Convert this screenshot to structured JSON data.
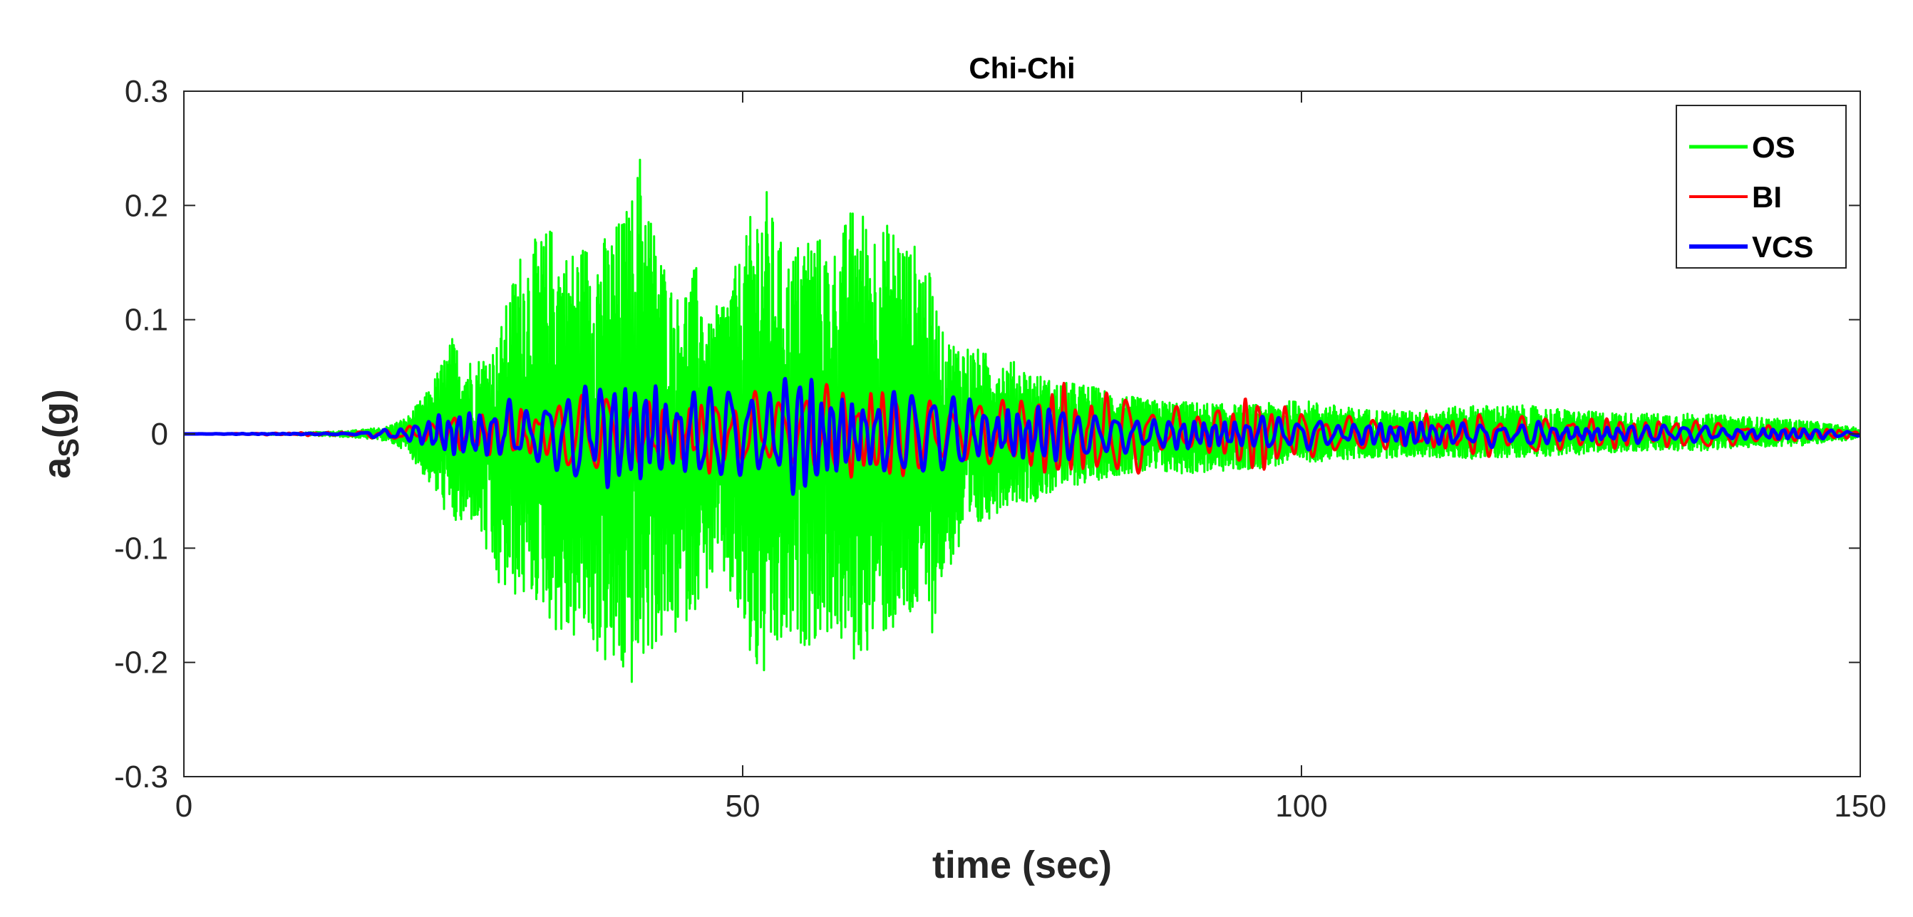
{
  "chart_data": {
    "type": "line",
    "title": "Chi-Chi",
    "xlabel": "time (sec)",
    "ylabel_main": "a",
    "ylabel_sub": "S",
    "ylabel_unit": "(g)",
    "xlim": [
      0,
      150
    ],
    "ylim": [
      -0.3,
      0.3
    ],
    "x_ticks": [
      0,
      50,
      100,
      150
    ],
    "x_tick_labels": [
      "0",
      "50",
      "100",
      "150"
    ],
    "y_ticks": [
      -0.3,
      -0.2,
      -0.1,
      0,
      0.1,
      0.2,
      0.3
    ],
    "y_tick_labels": [
      "-0.3",
      "-0.2",
      "-0.1",
      "0",
      "0.1",
      "0.2",
      "0.3"
    ],
    "grid": false,
    "legend_position": "top-right",
    "series": [
      {
        "name": "OS",
        "color": "#00ff00",
        "envelope_t": [
          0,
          10,
          15,
          18,
          20,
          22,
          24,
          25,
          26,
          28,
          30,
          32,
          33,
          34,
          36,
          38,
          40,
          41,
          42,
          44,
          46,
          47,
          48,
          50,
          51,
          52,
          53,
          54,
          56,
          58,
          60,
          62,
          64,
          65,
          66,
          67,
          68,
          70,
          72,
          74,
          76,
          78,
          80,
          82,
          84,
          86,
          90,
          95,
          100,
          105,
          110,
          115,
          120,
          125,
          130,
          135,
          140,
          145,
          150
        ],
        "envelope_upper": [
          0,
          0.001,
          0.003,
          0.006,
          0.015,
          0.04,
          0.085,
          0.07,
          0.065,
          0.08,
          0.16,
          0.175,
          0.185,
          0.16,
          0.17,
          0.175,
          0.205,
          0.26,
          0.185,
          0.12,
          0.15,
          0.095,
          0.12,
          0.16,
          0.205,
          0.22,
          0.18,
          0.155,
          0.185,
          0.16,
          0.205,
          0.185,
          0.185,
          0.165,
          0.17,
          0.13,
          0.085,
          0.08,
          0.07,
          0.065,
          0.055,
          0.045,
          0.045,
          0.04,
          0.035,
          0.03,
          0.028,
          0.025,
          0.03,
          0.022,
          0.02,
          0.025,
          0.025,
          0.02,
          0.018,
          0.018,
          0.015,
          0.012,
          0.005
        ],
        "envelope_lower": [
          0,
          -0.001,
          -0.003,
          -0.006,
          -0.015,
          -0.045,
          -0.08,
          -0.085,
          -0.075,
          -0.14,
          -0.145,
          -0.15,
          -0.17,
          -0.185,
          -0.18,
          -0.21,
          -0.225,
          -0.205,
          -0.19,
          -0.18,
          -0.15,
          -0.135,
          -0.12,
          -0.18,
          -0.215,
          -0.22,
          -0.2,
          -0.19,
          -0.185,
          -0.175,
          -0.205,
          -0.18,
          -0.175,
          -0.17,
          -0.155,
          -0.175,
          -0.125,
          -0.1,
          -0.075,
          -0.06,
          -0.06,
          -0.05,
          -0.045,
          -0.04,
          -0.035,
          -0.035,
          -0.035,
          -0.032,
          -0.025,
          -0.022,
          -0.02,
          -0.022,
          -0.02,
          -0.018,
          -0.015,
          -0.015,
          -0.012,
          -0.01,
          -0.004
        ]
      },
      {
        "name": "BI",
        "color": "#ff0000",
        "envelope_t": [
          0,
          15,
          20,
          24,
          30,
          40,
          44,
          46,
          50,
          56,
          62,
          68,
          72,
          74,
          76,
          78,
          80,
          82,
          84,
          86,
          90,
          95,
          100,
          105,
          110,
          113,
          116,
          118,
          120,
          122,
          125,
          130,
          135,
          140,
          145,
          150
        ],
        "envelope_amp": [
          0,
          0.002,
          0.01,
          0.02,
          0.03,
          0.035,
          0.04,
          0.038,
          0.035,
          0.04,
          0.035,
          0.03,
          0.03,
          0.03,
          0.035,
          0.04,
          0.052,
          0.04,
          0.03,
          0.025,
          0.02,
          0.03,
          0.02,
          0.012,
          0.015,
          0.02,
          0.018,
          0.015,
          0.02,
          0.025,
          0.015,
          0.012,
          0.012,
          0.01,
          0.006,
          0.003
        ],
        "dominant_period_sec": 2.0
      },
      {
        "name": "VCS",
        "color": "#0000ff",
        "envelope_t": [
          0,
          15,
          20,
          24,
          30,
          35,
          40,
          44,
          48,
          52,
          56,
          60,
          64,
          68,
          72,
          76,
          80,
          84,
          88,
          92,
          96,
          100,
          105,
          110,
          115,
          120,
          125,
          130,
          135,
          140,
          145,
          150
        ],
        "envelope_amp": [
          0,
          0.001,
          0.008,
          0.02,
          0.03,
          0.045,
          0.04,
          0.045,
          0.05,
          0.048,
          0.045,
          0.04,
          0.035,
          0.03,
          0.025,
          0.022,
          0.02,
          0.018,
          0.016,
          0.015,
          0.015,
          0.013,
          0.01,
          0.01,
          0.012,
          0.01,
          0.009,
          0.008,
          0.007,
          0.006,
          0.004,
          0.002
        ],
        "dominant_period_sec": 1.6
      }
    ]
  }
}
